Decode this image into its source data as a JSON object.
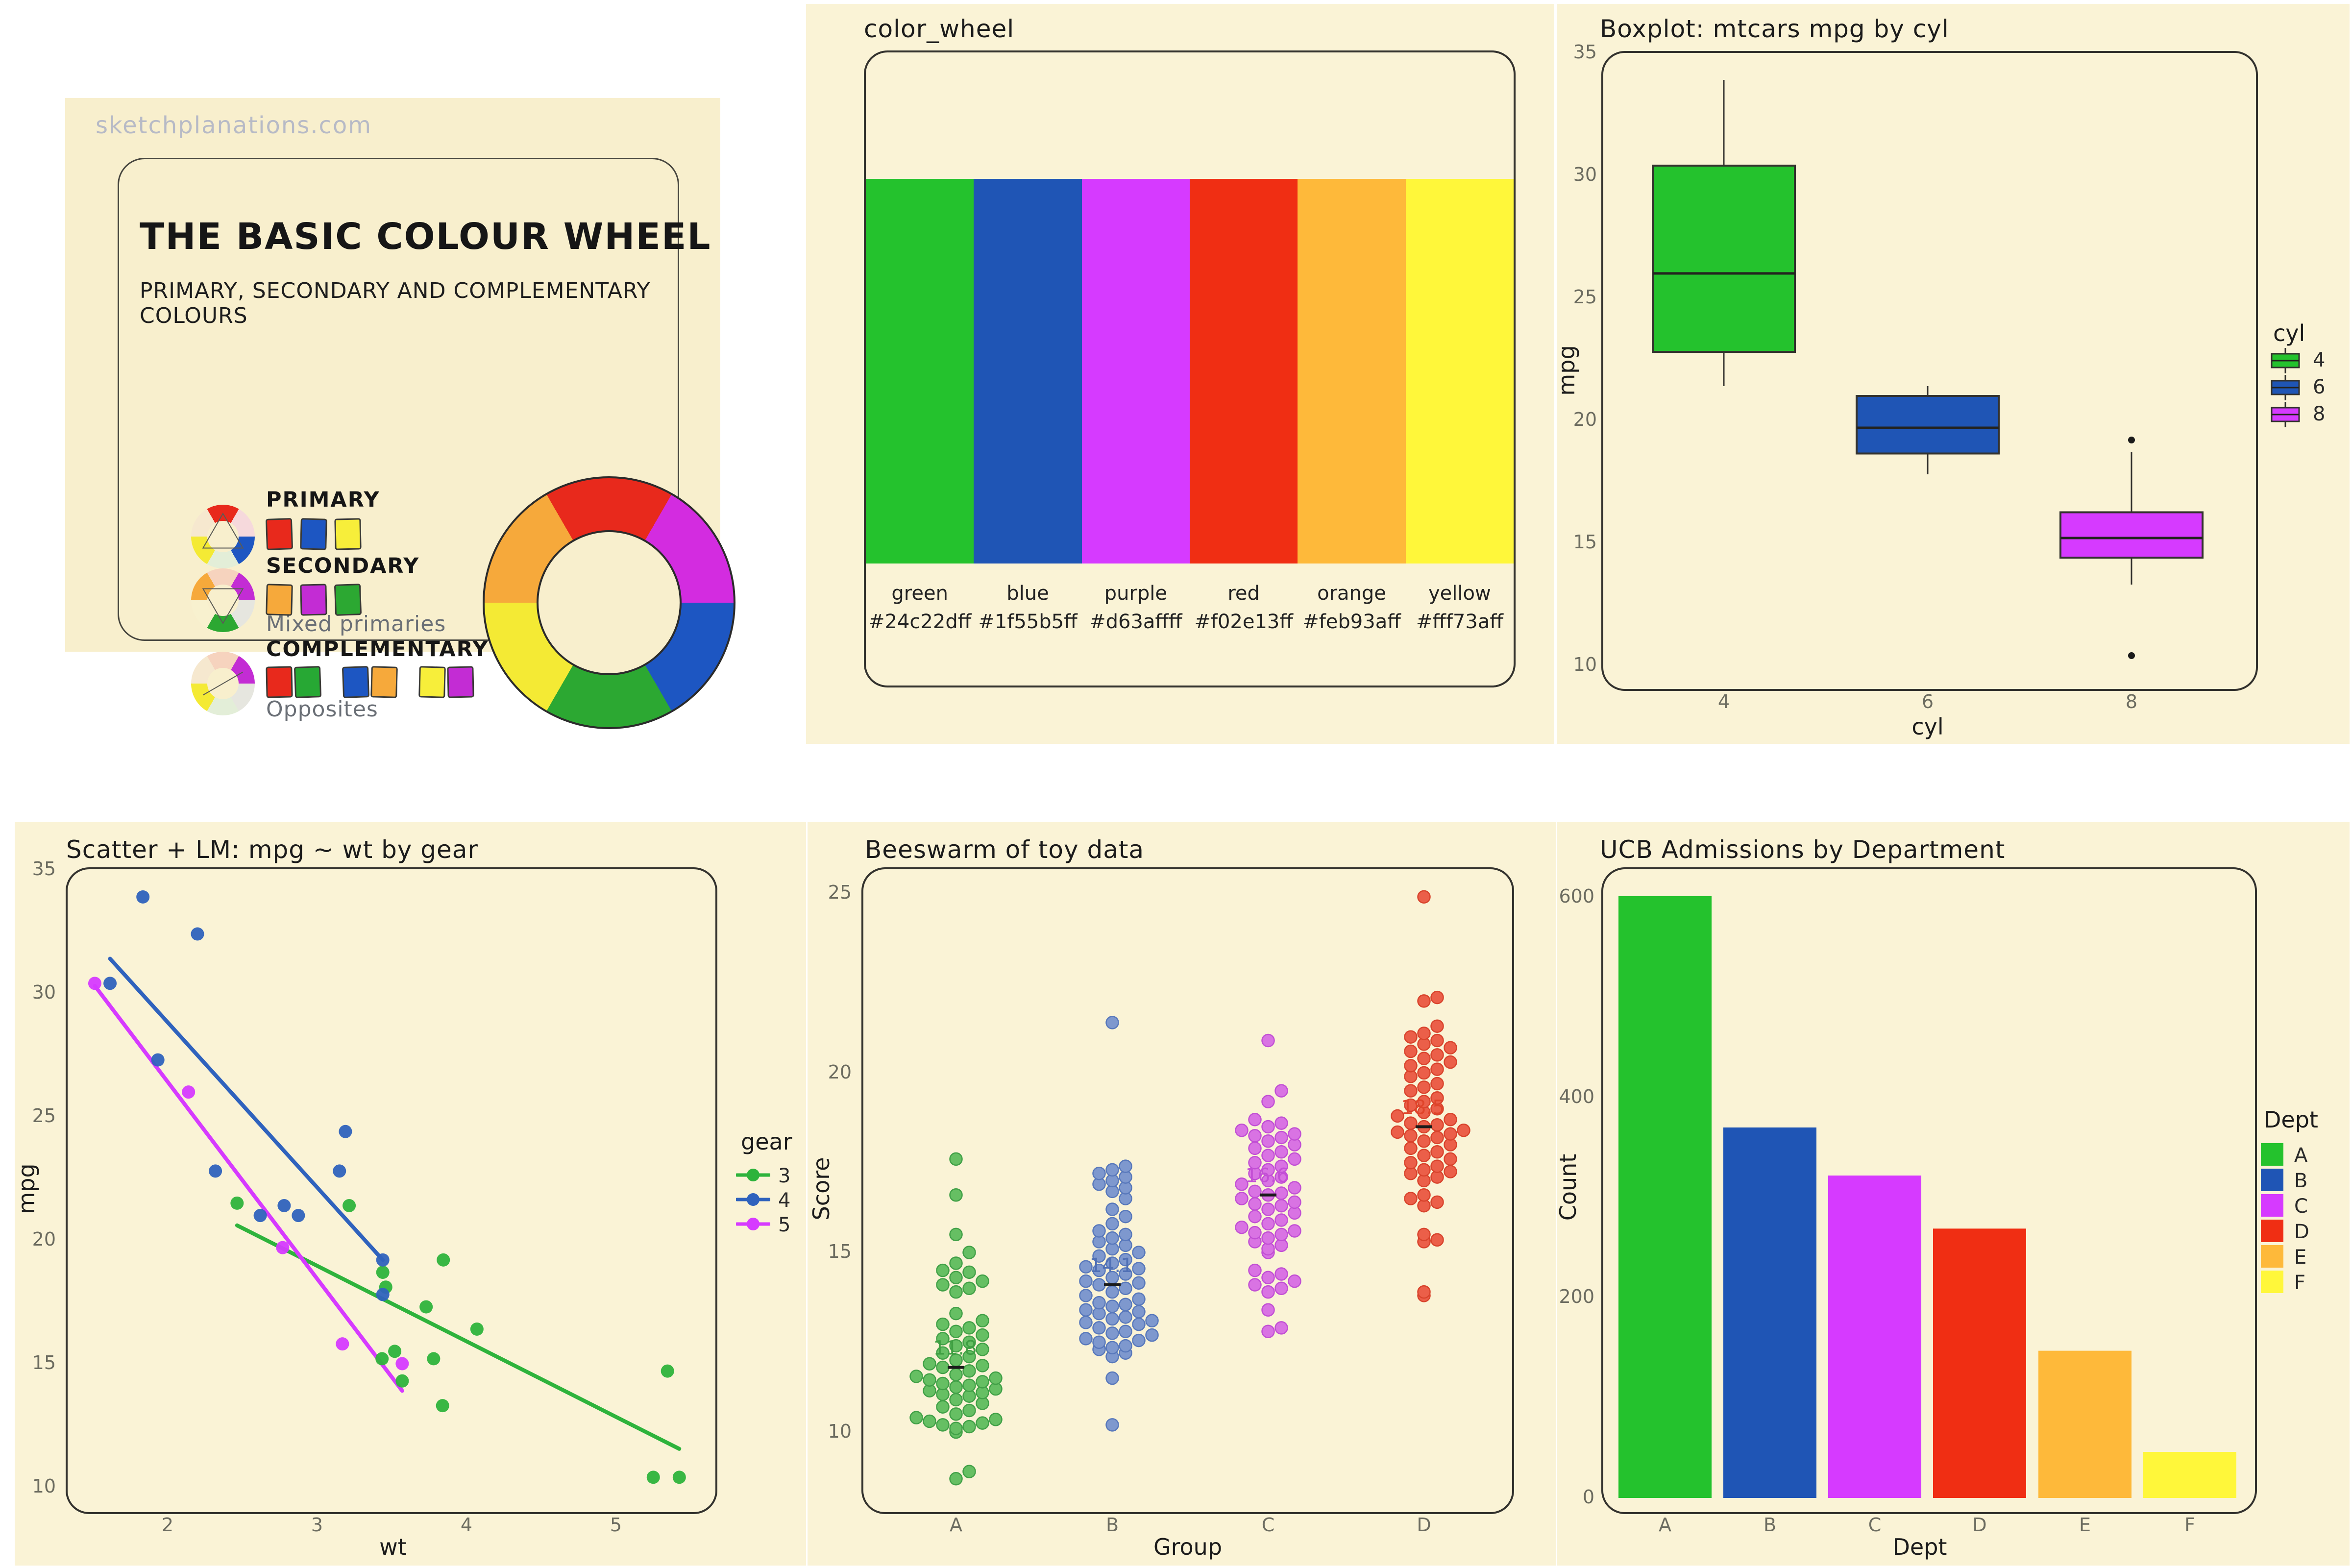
{
  "sketch": {
    "watermark": "sketchplanations.com",
    "title": "THE BASIC COLOUR WHEEL",
    "subtitle": "PRIMARY, SECONDARY AND COMPLEMENTARY COLOURS",
    "big_wheel_colors": [
      "#e8291c",
      "#d32ce0",
      "#1d56c2",
      "#2ca832",
      "#f4ea34",
      "#f6a93b"
    ],
    "rows": [
      {
        "label": "PRIMARY",
        "caption": "",
        "overlay": "triangle-up",
        "wheel": [
          "#e8291c",
          "#f6d9dc",
          "#1d56c2",
          "#e3eed8",
          "#f4ea34",
          "#f6e8cf"
        ],
        "chips": [
          [
            "#e8291c"
          ],
          [
            "#1d56c2"
          ],
          [
            "#f7ee3a"
          ]
        ]
      },
      {
        "label": "SECONDARY",
        "caption": "Mixed primaries",
        "overlay": "triangle-down",
        "wheel": [
          "#f6d3be",
          "#c32cd4",
          "#e6e6df",
          "#2ca832",
          "#f8f1cf",
          "#f6a93b"
        ],
        "chips": [
          [
            "#f6a93b"
          ],
          [
            "#c32cd4"
          ],
          [
            "#2ca832"
          ]
        ]
      },
      {
        "label": "COMPLEMENTARY",
        "caption": "Opposites",
        "overlay": "line",
        "wheel": [
          "#f6d3be",
          "#c32cd4",
          "#e6e6df",
          "#e3eed8",
          "#f4ea34",
          "#f6e8cf"
        ],
        "chips": [
          [
            "#e8291c",
            "#27a834"
          ],
          [
            "#1d56c2",
            "#f6a93b"
          ],
          [
            "#f7ee3a",
            "#c32cd4"
          ]
        ]
      }
    ]
  },
  "chart_data": [
    {
      "id": "color_wheel",
      "type": "swatches",
      "title": "color_wheel",
      "names": [
        "green",
        "blue",
        "purple",
        "red",
        "orange",
        "yellow"
      ],
      "hex": [
        "#24c22dff",
        "#1f55b5ff",
        "#d63affff",
        "#f02e13ff",
        "#feb93aff",
        "#fff73aff"
      ],
      "colors": [
        "#24c22d",
        "#1f55b5",
        "#d63aff",
        "#f02e13",
        "#feb93a",
        "#fff73a"
      ]
    },
    {
      "id": "boxplot",
      "type": "boxplot",
      "title": "Boxplot: mtcars mpg by cyl",
      "xlabel": "cyl",
      "ylabel": "mpg",
      "legend_title": "cyl",
      "y_ticks": [
        35,
        30,
        25,
        20,
        15,
        10
      ],
      "ylim": [
        10,
        35
      ],
      "categories": [
        "4",
        "6",
        "8"
      ],
      "colors": [
        "#24c22d",
        "#1f55b5",
        "#d63aff"
      ],
      "stats": [
        {
          "group": "4",
          "whisker_low": 21.4,
          "q1": 22.8,
          "median": 26.0,
          "q3": 30.4,
          "whisker_high": 33.9,
          "outliers": []
        },
        {
          "group": "6",
          "whisker_low": 17.8,
          "q1": 18.65,
          "median": 19.7,
          "q3": 21.0,
          "whisker_high": 21.4,
          "outliers": []
        },
        {
          "group": "8",
          "whisker_low": 13.3,
          "q1": 14.4,
          "median": 15.2,
          "q3": 16.25,
          "whisker_high": 18.7,
          "outliers": [
            19.2,
            10.4
          ]
        }
      ]
    },
    {
      "id": "scatter",
      "type": "scatter",
      "title": "Scatter + LM: mpg ~ wt by gear",
      "xlabel": "wt",
      "ylabel": "mpg",
      "legend_title": "gear",
      "x_ticks": [
        2,
        3,
        4,
        5
      ],
      "y_ticks": [
        35,
        30,
        25,
        20,
        15,
        10
      ],
      "xlim": [
        1.4,
        5.5
      ],
      "ylim": [
        10,
        35
      ],
      "series": [
        {
          "name": "3",
          "color": "#2eb33c",
          "points": [
            [
              3.215,
              21.4
            ],
            [
              3.44,
              18.7
            ],
            [
              3.46,
              18.1
            ],
            [
              3.57,
              14.3
            ],
            [
              4.07,
              16.4
            ],
            [
              3.73,
              17.3
            ],
            [
              3.78,
              15.2
            ],
            [
              5.25,
              10.4
            ],
            [
              5.424,
              10.4
            ],
            [
              5.345,
              14.7
            ],
            [
              3.52,
              15.5
            ],
            [
              3.435,
              15.2
            ],
            [
              3.84,
              13.3
            ],
            [
              3.845,
              19.2
            ],
            [
              2.465,
              21.5
            ]
          ],
          "line": {
            "x1": 2.465,
            "y1": 20.6,
            "x2": 5.424,
            "y2": 11.55
          }
        },
        {
          "name": "4",
          "color": "#2f62bd",
          "points": [
            [
              2.62,
              21.0
            ],
            [
              2.875,
              21.0
            ],
            [
              2.32,
              22.8
            ],
            [
              3.19,
              24.4
            ],
            [
              3.15,
              22.8
            ],
            [
              3.44,
              19.2
            ],
            [
              3.44,
              17.8
            ],
            [
              2.2,
              32.4
            ],
            [
              1.615,
              30.4
            ],
            [
              1.835,
              33.9
            ],
            [
              1.935,
              27.3
            ],
            [
              2.78,
              21.4
            ]
          ],
          "line": {
            "x1": 1.615,
            "y1": 31.4,
            "x2": 3.44,
            "y2": 19.2
          }
        },
        {
          "name": "5",
          "color": "#d63aff",
          "points": [
            [
              2.14,
              26.0
            ],
            [
              1.513,
              30.4
            ],
            [
              3.17,
              15.8
            ],
            [
              2.77,
              19.7
            ],
            [
              3.57,
              15.0
            ]
          ],
          "line": {
            "x1": 1.513,
            "y1": 30.3,
            "x2": 3.57,
            "y2": 13.9
          }
        }
      ]
    },
    {
      "id": "beeswarm",
      "type": "beeswarm",
      "title": "Beeswarm of toy data",
      "xlabel": "Group",
      "ylabel": "Score",
      "y_ticks": [
        25,
        20,
        15,
        10
      ],
      "ylim": [
        8.5,
        25
      ],
      "groups": [
        {
          "name": "A",
          "mean": 11.8,
          "mean_label": "11.8",
          "fill": "#66bf63",
          "stroke": "#41a047",
          "label_color": "#3f9f42",
          "values": [
            8.7,
            8.9,
            10.0,
            10.1,
            10.15,
            10.2,
            10.25,
            10.3,
            10.35,
            10.4,
            10.5,
            10.6,
            10.7,
            10.8,
            10.9,
            11.0,
            11.05,
            11.1,
            11.15,
            11.2,
            11.25,
            11.3,
            11.35,
            11.4,
            11.45,
            11.5,
            11.55,
            11.6,
            11.7,
            11.8,
            11.85,
            11.9,
            12.0,
            12.1,
            12.2,
            12.3,
            12.4,
            12.5,
            12.6,
            12.7,
            12.8,
            12.9,
            13.0,
            13.1,
            13.3,
            13.9,
            14.0,
            14.1,
            14.2,
            14.3,
            14.45,
            14.5,
            14.7,
            15.0,
            15.5,
            16.6,
            17.6
          ]
        },
        {
          "name": "B",
          "mean": 14.1,
          "mean_label": "14.1",
          "fill": "#7e98ce",
          "stroke": "#5878bb",
          "label_color": "#5070b5",
          "values": [
            10.2,
            11.5,
            12.1,
            12.2,
            12.3,
            12.35,
            12.4,
            12.5,
            12.55,
            12.6,
            12.7,
            12.75,
            12.8,
            12.9,
            13.0,
            13.05,
            13.1,
            13.15,
            13.2,
            13.3,
            13.35,
            13.4,
            13.5,
            13.55,
            13.6,
            13.7,
            13.8,
            13.9,
            14.0,
            14.1,
            14.15,
            14.2,
            14.3,
            14.4,
            14.5,
            14.55,
            14.6,
            14.7,
            14.8,
            14.9,
            15.0,
            15.1,
            15.2,
            15.3,
            15.4,
            15.5,
            15.6,
            15.8,
            16.0,
            16.2,
            16.5,
            16.7,
            16.8,
            16.9,
            17.0,
            17.1,
            17.2,
            17.3,
            17.4,
            21.4
          ]
        },
        {
          "name": "C",
          "mean": 16.6,
          "mean_label": "16.6",
          "fill": "#d973e3",
          "stroke": "#c14fd4",
          "label_color": "#c44fd6",
          "values": [
            12.8,
            12.9,
            13.4,
            13.9,
            14.0,
            14.1,
            14.2,
            14.3,
            14.4,
            14.5,
            15.0,
            15.1,
            15.2,
            15.3,
            15.4,
            15.5,
            15.55,
            15.6,
            15.7,
            15.8,
            15.9,
            16.0,
            16.1,
            16.2,
            16.3,
            16.35,
            16.4,
            16.5,
            16.6,
            16.65,
            16.7,
            16.8,
            16.9,
            17.0,
            17.1,
            17.2,
            17.3,
            17.4,
            17.5,
            17.6,
            17.7,
            17.8,
            17.9,
            18.0,
            18.1,
            18.2,
            18.25,
            18.3,
            18.4,
            18.5,
            18.6,
            18.7,
            19.2,
            19.5,
            20.9
          ]
        },
        {
          "name": "D",
          "mean": 18.5,
          "mean_label": "18.5",
          "fill": "#eb5f49",
          "stroke": "#d8432c",
          "label_color": "#e0442a",
          "values": [
            13.8,
            13.9,
            15.3,
            15.35,
            15.5,
            16.3,
            16.4,
            16.5,
            16.6,
            17.0,
            17.1,
            17.2,
            17.25,
            17.3,
            17.4,
            17.5,
            17.6,
            17.7,
            17.8,
            17.9,
            18.0,
            18.1,
            18.2,
            18.25,
            18.3,
            18.35,
            18.4,
            18.5,
            18.55,
            18.6,
            18.7,
            18.8,
            18.9,
            19.0,
            19.1,
            19.2,
            19.3,
            19.5,
            19.6,
            19.7,
            19.9,
            20.0,
            20.1,
            20.2,
            20.3,
            20.4,
            20.5,
            20.6,
            20.7,
            20.8,
            20.9,
            21.0,
            21.1,
            21.3,
            22.0,
            22.1,
            24.9
          ]
        }
      ]
    },
    {
      "id": "bar",
      "type": "bar",
      "title": "UCB Admissions by Department",
      "xlabel": "Dept",
      "ylabel": "Count",
      "legend_title": "Dept",
      "y_ticks": [
        600,
        400,
        200,
        0
      ],
      "ylim": [
        0,
        620
      ],
      "categories": [
        "A",
        "B",
        "C",
        "D",
        "E",
        "F"
      ],
      "values": [
        601,
        370,
        322,
        269,
        147,
        46
      ],
      "colors": [
        "#24c22d",
        "#1f55b5",
        "#d63aff",
        "#f02e13",
        "#feb93a",
        "#fff73a"
      ]
    }
  ]
}
